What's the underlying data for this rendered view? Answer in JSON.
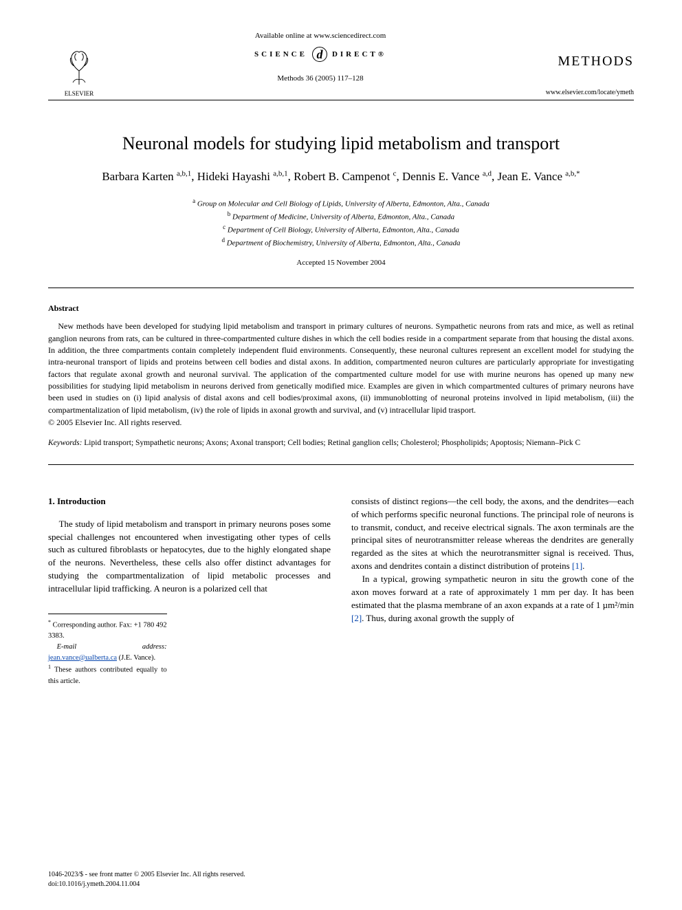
{
  "header": {
    "available_text": "Available online at www.sciencedirect.com",
    "sd_left": "SCIENCE",
    "sd_right": "DIRECT®",
    "citation": "Methods 36 (2005) 117–128",
    "publisher_name": "ELSEVIER",
    "journal_name": "METHODS",
    "journal_url": "www.elsevier.com/locate/ymeth"
  },
  "article": {
    "title": "Neuronal models for studying lipid metabolism and transport",
    "authors_html": "Barbara Karten <sup>a,b,1</sup>, Hideki Hayashi <sup>a,b,1</sup>, Robert B. Campenot <sup>c</sup>, Dennis E. Vance <sup>a,d</sup>, Jean E. Vance <sup>a,b,*</sup>",
    "affiliations": [
      {
        "sup": "a",
        "text": "Group on Molecular and Cell Biology of Lipids, University of Alberta, Edmonton, Alta., Canada"
      },
      {
        "sup": "b",
        "text": "Department of Medicine, University of Alberta, Edmonton, Alta., Canada"
      },
      {
        "sup": "c",
        "text": "Department of Cell Biology, University of Alberta, Edmonton, Alta., Canada"
      },
      {
        "sup": "d",
        "text": "Department of Biochemistry, University of Alberta, Edmonton, Alta., Canada"
      }
    ],
    "accepted": "Accepted 15 November 2004"
  },
  "abstract": {
    "heading": "Abstract",
    "text": "New methods have been developed for studying lipid metabolism and transport in primary cultures of neurons. Sympathetic neurons from rats and mice, as well as retinal ganglion neurons from rats, can be cultured in three-compartmented culture dishes in which the cell bodies reside in a compartment separate from that housing the distal axons. In addition, the three compartments contain completely independent fluid environments. Consequently, these neuronal cultures represent an excellent model for studying the intra-neuronal transport of lipids and proteins between cell bodies and distal axons. In addition, compartmented neuron cultures are particularly appropriate for investigating factors that regulate axonal growth and neuronal survival. The application of the compartmented culture model for use with murine neurons has opened up many new possibilities for studying lipid metabolism in neurons derived from genetically modified mice. Examples are given in which compartmented cultures of primary neurons have been used in studies on (i) lipid analysis of distal axons and cell bodies/proximal axons, (ii) immunoblotting of neuronal proteins involved in lipid metabolism, (iii) the compartmentalization of lipid metabolism, (iv) the role of lipids in axonal growth and survival, and (v) intracellular lipid trasport.",
    "copyright": "© 2005 Elsevier Inc. All rights reserved."
  },
  "keywords": {
    "label": "Keywords:",
    "text": "Lipid transport; Sympathetic neurons; Axons; Axonal transport; Cell bodies; Retinal ganglion cells; Cholesterol; Phospholipids; Apoptosis; Niemann–Pick C"
  },
  "body": {
    "section_number": "1.",
    "section_title": "Introduction",
    "col1_p1": "The study of lipid metabolism and transport in primary neurons poses some special challenges not encountered when investigating other types of cells such as cultured fibroblasts or hepatocytes, due to the highly elongated shape of the neurons. Nevertheless, these cells also offer distinct advantages for studying the compartmentalization of lipid metabolic processes and intracellular lipid trafficking. A neuron is a polarized cell that",
    "col2_p1_pre": "consists of distinct regions—the cell body, the axons, and the dendrites—each of which performs specific neuronal functions. The principal role of neurons is to transmit, conduct, and receive electrical signals. The axon terminals are the principal sites of neurotransmitter release whereas the dendrites are generally regarded as the sites at which the neurotransmitter signal is received. Thus, axons and dendrites contain a distinct distribution of proteins ",
    "ref1": "[1]",
    "col2_p1_post": ".",
    "col2_p2_pre": "In a typical, growing sympathetic neuron in situ the growth cone of the axon moves forward at a rate of approximately 1 mm per day. It has been estimated that the plasma membrane of an axon expands at a rate of 1 µm²/min ",
    "ref2": "[2]",
    "col2_p2_post": ". Thus, during axonal growth the supply of"
  },
  "footnotes": {
    "corr_label": "*",
    "corr_text": "Corresponding author. Fax: +1 780 492 3383.",
    "email_label": "E-mail address:",
    "email": "jean.vance@ualberta.ca",
    "email_paren": "(J.E. Vance).",
    "equal_label": "1",
    "equal_text": "These authors contributed equally to this article."
  },
  "doi": {
    "line1": "1046-2023/$ - see front matter © 2005 Elsevier Inc. All rights reserved.",
    "line2": "doi:10.1016/j.ymeth.2004.11.004"
  },
  "colors": {
    "text": "#000000",
    "background": "#ffffff",
    "link": "#0645ad",
    "rule": "#000000"
  },
  "typography": {
    "body_font": "Georgia, Times New Roman, serif",
    "title_size_pt": 20,
    "authors_size_pt": 13,
    "abstract_size_pt": 9,
    "body_size_pt": 10,
    "footnote_size_pt": 8
  }
}
